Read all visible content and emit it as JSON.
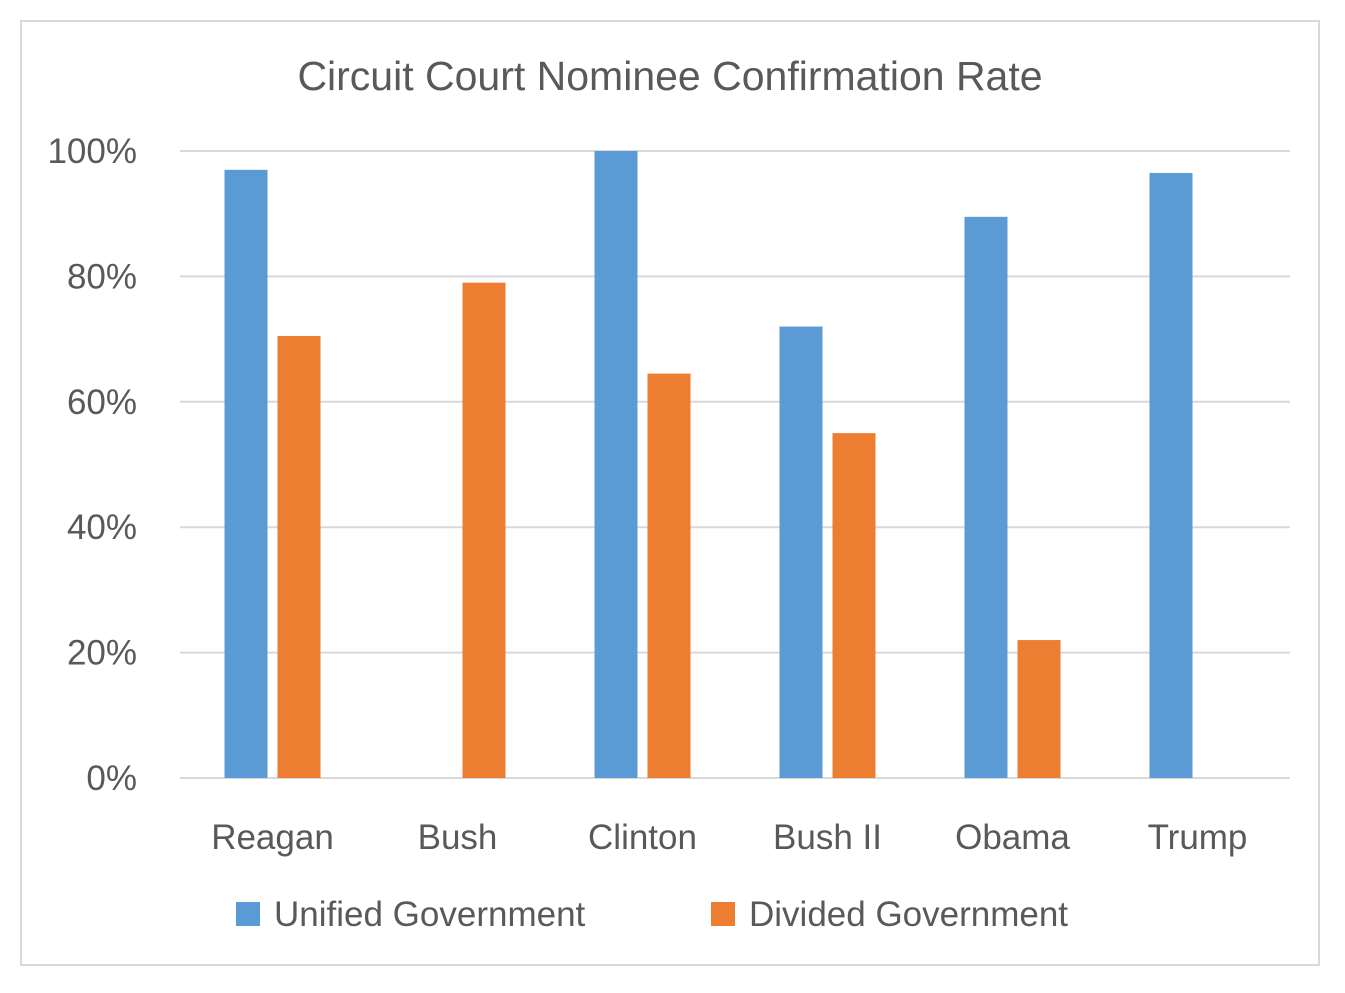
{
  "chart_data": {
    "type": "bar",
    "title": "Circuit Court Nominee Confirmation Rate",
    "xlabel": "",
    "ylabel": "",
    "categories": [
      "Reagan",
      "Bush",
      "Clinton",
      "Bush II",
      "Obama",
      "Trump"
    ],
    "series": [
      {
        "name": "Unified Government",
        "color": "#5b9bd5",
        "values": [
          0.97,
          null,
          1.0,
          0.72,
          0.895,
          0.965
        ]
      },
      {
        "name": "Divided Government",
        "color": "#ed7d31",
        "values": [
          0.705,
          0.79,
          0.645,
          0.55,
          0.22,
          null
        ]
      }
    ],
    "ylim": [
      0,
      1.0
    ],
    "yticks": [
      0,
      0.2,
      0.4,
      0.6,
      0.8,
      1.0
    ],
    "ytick_labels": [
      "0%",
      "20%",
      "40%",
      "60%",
      "80%",
      "100%"
    ],
    "grid": true,
    "legend_position": "bottom"
  }
}
